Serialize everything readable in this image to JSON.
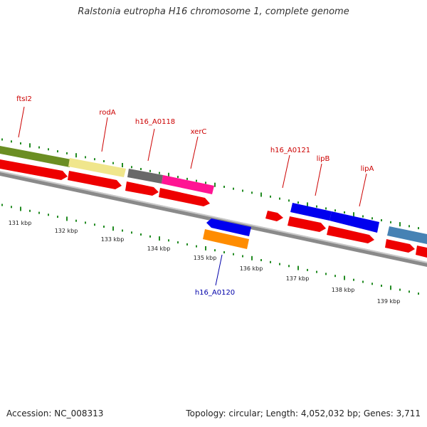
{
  "title": "Ralstonia eutropha H16 chromosome 1, complete genome",
  "footer": {
    "accession": "Accession: NC_008313",
    "stats": "Topology: circular; Length: 4,052,032 bp; Genes: 3,711"
  },
  "colors": {
    "backbone": "#888888",
    "ticks": "#228b22",
    "label_forward": "#cc0000",
    "label_reverse": "#0000aa",
    "cds": "#ee0000"
  },
  "ticks": [
    {
      "label": "131 kbp"
    },
    {
      "label": "132 kbp"
    },
    {
      "label": "133 kbp"
    },
    {
      "label": "134 kbp"
    },
    {
      "label": "135 kbp"
    },
    {
      "label": "136 kbp"
    },
    {
      "label": "137 kbp"
    },
    {
      "label": "138 kbp"
    },
    {
      "label": "139 kbp"
    }
  ],
  "gene_labels": [
    {
      "name": "ftsI2",
      "strand": "forward"
    },
    {
      "name": "rodA",
      "strand": "forward"
    },
    {
      "name": "h16_A0118",
      "strand": "forward"
    },
    {
      "name": "xerC",
      "strand": "forward"
    },
    {
      "name": "h16_A0121",
      "strand": "forward"
    },
    {
      "name": "lipB",
      "strand": "forward"
    },
    {
      "name": "lipA",
      "strand": "forward"
    },
    {
      "name": "h16_A0120",
      "strand": "reverse"
    }
  ],
  "genes": [
    {
      "name": "ftsI2",
      "color": "#6b8e23"
    },
    {
      "name": "rodA",
      "color": "#f0e68c"
    },
    {
      "name": "h16_A0118",
      "color": "#696969"
    },
    {
      "name": "xerC",
      "color": "#ff1493"
    },
    {
      "name": "h16_A0121",
      "color": "#ee0000"
    },
    {
      "name": "lipB",
      "color": "#0000ee"
    },
    {
      "name": "lipA",
      "color": "#0000ee"
    },
    {
      "name": "h16_A0120-cds",
      "color": "#0000ee"
    },
    {
      "name": "h16_A0120",
      "color": "#ff8c00"
    },
    {
      "name": "next-gene",
      "color": "#4682b4"
    }
  ]
}
